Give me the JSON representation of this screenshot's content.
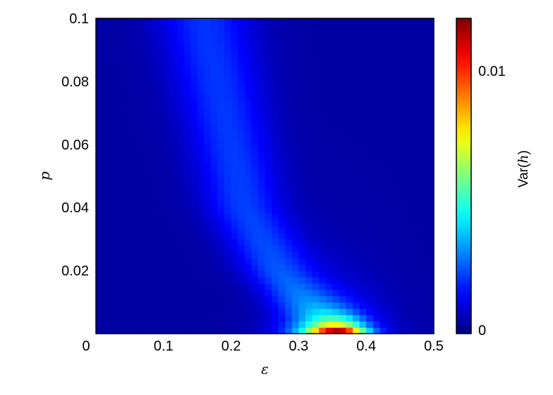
{
  "chart_data": {
    "type": "heatmap",
    "title": "",
    "xlabel": "ε",
    "ylabel": "p",
    "xlim": [
      0,
      0.5
    ],
    "ylim": [
      0,
      0.1
    ],
    "x_ticks": [
      "0",
      "0.1",
      "0.2",
      "0.3",
      "0.4",
      "0.5"
    ],
    "y_ticks": [
      "0.02",
      "0.04",
      "0.06",
      "0.08",
      "0.1"
    ],
    "grid": false,
    "colormap": "jet",
    "colorbar": {
      "label_prefix": "Var(",
      "label_var": "h",
      "label_suffix": ")",
      "range": [
        0,
        0.012
      ],
      "ticks": [
        "0",
        "0.01"
      ]
    },
    "x_bins": 50,
    "y_bins": 50,
    "features": {
      "peak": {
        "x": 0.36,
        "y": 0.001,
        "value": 0.012
      },
      "ridge": [
        {
          "p": 0.1,
          "x": 0.16
        },
        {
          "p": 0.08,
          "x": 0.18
        },
        {
          "p": 0.06,
          "x": 0.2
        },
        {
          "p": 0.04,
          "x": 0.22
        },
        {
          "p": 0.02,
          "x": 0.27
        },
        {
          "p": 0.005,
          "x": 0.33
        }
      ]
    }
  }
}
